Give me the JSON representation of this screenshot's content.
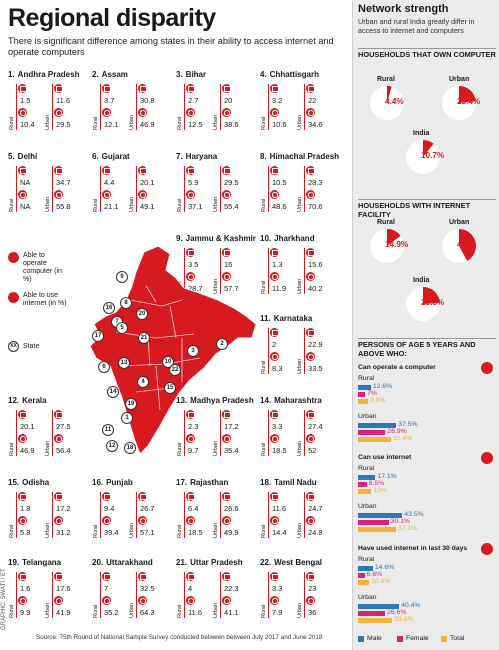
{
  "title": "Regional disparity",
  "subtitle": "There is significant difference among states in their ability to access internet and operate computers",
  "legend": {
    "operate": "Able to operate computer (in %)",
    "use": "Able to use internet (in %)",
    "state": "State",
    "state_icon": "XX"
  },
  "axis": {
    "rural": "Rural",
    "urban": "Urban"
  },
  "chart_data": [
    {
      "type": "table",
      "title": "Regional disparity",
      "columns": [
        "Operate computer - Rural",
        "Operate computer - Urban",
        "Use internet - Rural",
        "Use internet - Urban"
      ],
      "states": [
        {
          "num": "1.",
          "name": "Andhra Pradesh",
          "op_r": "1.5",
          "op_u": "11.6",
          "in_r": "10.4",
          "in_u": "29.5"
        },
        {
          "num": "2.",
          "name": "Assam",
          "op_r": "3.7",
          "op_u": "30.8",
          "in_r": "12.1",
          "in_u": "46.9"
        },
        {
          "num": "3.",
          "name": "Bihar",
          "op_r": "2.7",
          "op_u": "20",
          "in_r": "12.5",
          "in_u": "38.6"
        },
        {
          "num": "4.",
          "name": "Chhattisgarh",
          "op_r": "3.2",
          "op_u": "22",
          "in_r": "10.6",
          "in_u": "34.6"
        },
        {
          "num": "5.",
          "name": "Delhi",
          "op_r": "NA",
          "op_u": "34.7",
          "in_r": "NA",
          "in_u": "55.8"
        },
        {
          "num": "6.",
          "name": "Gujarat",
          "op_r": "4.4",
          "op_u": "20.1",
          "in_r": "21.1",
          "in_u": "49.1"
        },
        {
          "num": "7.",
          "name": "Haryana",
          "op_r": "5.9",
          "op_u": "29.5",
          "in_r": "37.1",
          "in_u": "55.4"
        },
        {
          "num": "8.",
          "name": "Himachal Pradesh",
          "op_r": "10.5",
          "op_u": "28.3",
          "in_r": "48.6",
          "in_u": "70.6"
        },
        {
          "num": "9.",
          "name": "Jammu & Kashmir",
          "op_r": "3.5",
          "op_u": "16",
          "in_r": "28.7",
          "in_u": "57.7"
        },
        {
          "num": "10.",
          "name": "Jharkhand",
          "op_r": "1.3",
          "op_u": "15.6",
          "in_r": "11.9",
          "in_u": "40.2"
        },
        {
          "num": "11.",
          "name": "Karnataka",
          "op_r": "2",
          "op_u": "22.9",
          "in_r": "8.3",
          "in_u": "33.5"
        },
        {
          "num": "12.",
          "name": "Kerala",
          "op_r": "20.1",
          "op_u": "27.5",
          "in_r": "46.9",
          "in_u": "56.4"
        },
        {
          "num": "13.",
          "name": "Madhya Pradesh",
          "op_r": "2.3",
          "op_u": "17.2",
          "in_r": "9.7",
          "in_u": "35.4"
        },
        {
          "num": "14.",
          "name": "Maharashtra",
          "op_r": "3.3",
          "op_u": "27.4",
          "in_r": "18.5",
          "in_u": "52"
        },
        {
          "num": "15.",
          "name": "Odisha",
          "op_r": "1.8",
          "op_u": "17.2",
          "in_r": "5.8",
          "in_u": "31.2"
        },
        {
          "num": "16.",
          "name": "Punjab",
          "op_r": "9.4",
          "op_u": "26.7",
          "in_r": "39.4",
          "in_u": "57.1"
        },
        {
          "num": "17.",
          "name": "Rajasthan",
          "op_r": "6.4",
          "op_u": "26.6",
          "in_r": "18.5",
          "in_u": "49.9"
        },
        {
          "num": "18.",
          "name": "Tamil Nadu",
          "op_r": "11.6",
          "op_u": "24.7",
          "in_r": "14.4",
          "in_u": "24.8"
        },
        {
          "num": "19.",
          "name": "Telangana",
          "op_r": "1.6",
          "op_u": "17.6",
          "in_r": "9.9",
          "in_u": "41.9"
        },
        {
          "num": "20.",
          "name": "Uttarakhand",
          "op_r": "7",
          "op_u": "32.5",
          "in_r": "35.2",
          "in_u": "64.3"
        },
        {
          "num": "21.",
          "name": "Uttar Pradesh",
          "op_r": "4",
          "op_u": "22.3",
          "in_r": "11.6",
          "in_u": "41.1"
        },
        {
          "num": "22.",
          "name": "West Bengal",
          "op_r": "3.3",
          "op_u": "23",
          "in_r": "7.9",
          "in_u": "36"
        }
      ],
      "map_labels": [
        "9",
        "16",
        "8",
        "20",
        "7",
        "5",
        "17",
        "21",
        "2",
        "3",
        "10",
        "13",
        "22",
        "6",
        "4",
        "15",
        "14",
        "19",
        "1",
        "11",
        "12",
        "18"
      ]
    },
    {
      "type": "pie",
      "title": "HOUSEHOLDS THAT OWN COMPUTER",
      "slices": [
        {
          "name": "Rural",
          "value": 4.4,
          "label": "4.4%"
        },
        {
          "name": "Urban",
          "value": 23.4,
          "label": "23.4%"
        },
        {
          "name": "India",
          "value": 10.7,
          "label": "10.7%"
        }
      ]
    },
    {
      "type": "pie",
      "title": "HOUSEHOLDS WITH INTERNET FACILITY",
      "slices": [
        {
          "name": "Rural",
          "value": 14.9,
          "label": "14.9%"
        },
        {
          "name": "Urban",
          "value": 42,
          "label": "42%"
        },
        {
          "name": "India",
          "value": 23.8,
          "label": "23.8%"
        }
      ]
    },
    {
      "type": "bar",
      "title": "PERSONS OF AGE 5 YEARS AND ABOVE WHO:",
      "series_names": [
        "Male",
        "Female",
        "Total"
      ],
      "groups": [
        {
          "section": "Can operate a computer",
          "rural": [
            12.6,
            7,
            9.9
          ],
          "urban": [
            37.5,
            26.9,
            32.4
          ],
          "rural_labels": [
            "12.6%",
            "7%",
            "9.9%"
          ],
          "urban_labels": [
            "37.5%",
            "26.9%",
            "32.4%"
          ]
        },
        {
          "section": "Can use internet",
          "rural": [
            17.1,
            8.5,
            13
          ],
          "urban": [
            43.5,
            30.1,
            37.1
          ],
          "rural_labels": [
            "17.1%",
            "8.5%",
            "13%"
          ],
          "urban_labels": [
            "43.5%",
            "30.1%",
            "37.1%"
          ]
        },
        {
          "section": "Have used internet in last 30 days",
          "rural": [
            14.6,
            6.6,
            10.8
          ],
          "urban": [
            40.4,
            26.6,
            33.8
          ],
          "rural_labels": [
            "14.6%",
            "6.6%",
            "10.8%"
          ],
          "urban_labels": [
            "40.4%",
            "26.6%",
            "33.8%"
          ]
        }
      ]
    }
  ],
  "side": {
    "title": "Network strength",
    "subtitle": "Urban and rural India greatly differ in access to internet and computers",
    "labels": {
      "rural": "Rural",
      "urban": "Urban",
      "india": "India"
    }
  },
  "colors": {
    "red": "#d71920",
    "male": "#2a7ab8",
    "female": "#d6247a",
    "total": "#f0b43c"
  },
  "source": "Source: 75th Round of National Sample Survey conducted between between July 2017 and June 2018",
  "credit": "GRAPHIC: SWATI / ET"
}
